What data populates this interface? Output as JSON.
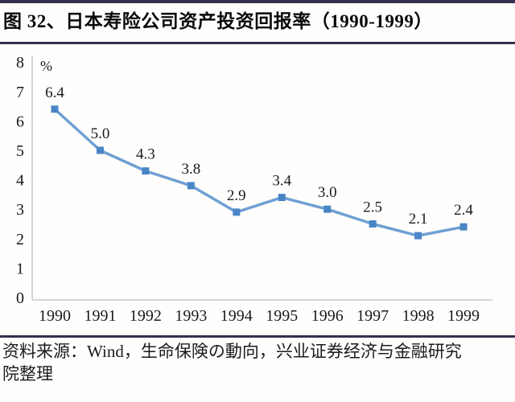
{
  "figure": {
    "title": "图 32、日本寿险公司资产投资回报率（1990-1999）",
    "source_lines": [
      "资料来源：Wind，生命保険の動向，兴业证券经济与金融研究",
      "院整理"
    ]
  },
  "chart_data": {
    "type": "line",
    "title": "日本寿险公司资产投资回报率（1990-1999）",
    "unit_label": "%",
    "categories": [
      "1990",
      "1991",
      "1992",
      "1993",
      "1994",
      "1995",
      "1996",
      "1997",
      "1998",
      "1999"
    ],
    "values": [
      6.4,
      5.0,
      4.3,
      3.8,
      2.9,
      3.4,
      3.0,
      2.5,
      2.1,
      2.4
    ],
    "data_labels": [
      "6.4",
      "5.0",
      "4.3",
      "3.8",
      "2.9",
      "3.4",
      "3.0",
      "2.5",
      "2.1",
      "2.4"
    ],
    "ylim": [
      0,
      8
    ],
    "ytick_step": 1,
    "yticks": [
      "0",
      "1",
      "2",
      "3",
      "4",
      "5",
      "6",
      "7",
      "8"
    ],
    "grid": false,
    "legend": "none",
    "marker_shape": "square",
    "colors": {
      "line": "#6fa0d3",
      "marker": "#4a86c6",
      "axis": "#c9c9c9",
      "label_text": "#1a1a1a",
      "rule": "#34314f"
    }
  }
}
